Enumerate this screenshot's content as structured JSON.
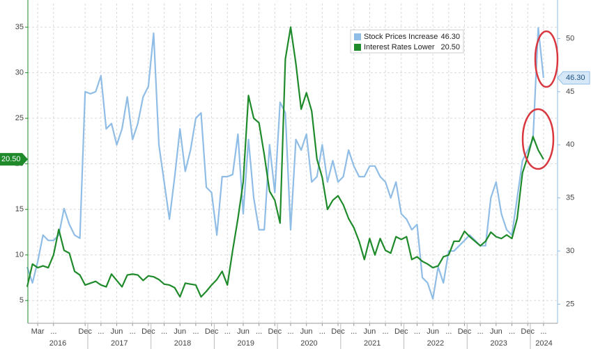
{
  "chart_data": {
    "type": "line",
    "categories": [
      null,
      null,
      "Mar",
      null,
      null,
      "...",
      null,
      null,
      null,
      null,
      null,
      "Dec",
      null,
      null,
      "...",
      null,
      null,
      "Jun",
      null,
      null,
      "...",
      null,
      null,
      "Dec",
      null,
      null,
      "...",
      null,
      null,
      "Jun",
      null,
      null,
      "...",
      null,
      null,
      "Dec",
      null,
      null,
      "...",
      null,
      null,
      "Jun",
      null,
      null,
      "...",
      null,
      null,
      "Dec",
      null,
      null,
      "...",
      null,
      null,
      "Jun",
      null,
      null,
      "...",
      null,
      null,
      "Dec",
      null,
      null,
      "...",
      null,
      null,
      "Jun",
      null,
      null,
      "...",
      null,
      null,
      "Dec",
      null,
      null,
      "...",
      null,
      null,
      "Jun",
      null,
      null,
      "...",
      null,
      null,
      "Dec",
      null,
      null,
      "...",
      null,
      null,
      "Jun",
      null,
      null,
      "...",
      null,
      null,
      "Dec",
      null,
      null,
      "..."
    ],
    "years": [
      "2016",
      "2017",
      "2018",
      "2019",
      "2020",
      "2021",
      "2022",
      "2023",
      "2024"
    ],
    "series": [
      {
        "name": "Stock Prices Increase",
        "color": "#8fbde6",
        "axis": "y2",
        "last_label": "46.30",
        "values": [
          28.5,
          27,
          29,
          31.5,
          31,
          31,
          31.5,
          34,
          32.5,
          31.5,
          31.2,
          45,
          44.8,
          45,
          46.5,
          41.5,
          42,
          40,
          41.5,
          44.5,
          40.5,
          42,
          44.5,
          45.5,
          50.5,
          40,
          36.5,
          33,
          37,
          41.5,
          37.5,
          39.5,
          42.5,
          43,
          36,
          35.5,
          31.5,
          37,
          37,
          37.2,
          41,
          33.5,
          40.5,
          35,
          32,
          32,
          40,
          35.5,
          44,
          43,
          32,
          40.5,
          39.5,
          41,
          36.5,
          37,
          40,
          36.5,
          38.5,
          36.5,
          37,
          39.5,
          38,
          37,
          37,
          38,
          38,
          37,
          36.5,
          35,
          36.5,
          33.5,
          33,
          32,
          32.5,
          27.5,
          27,
          25.5,
          28.5,
          27,
          30,
          30,
          30.5,
          31,
          31.5,
          31,
          30.5,
          30.5,
          35,
          36.5,
          33.5,
          32,
          31.5,
          35,
          38.5,
          39.5,
          40.5,
          51,
          46.3
        ]
      },
      {
        "name": "Interest Rates Lower",
        "color": "#1e8a2a",
        "axis": "y",
        "last_label": "20.50",
        "values": [
          6.5,
          9,
          8.6,
          8.8,
          8.6,
          10,
          12.8,
          10.5,
          10.2,
          8.2,
          7.8,
          6.7,
          6.9,
          7.1,
          6.7,
          6.5,
          7.9,
          7.2,
          6.5,
          7.8,
          7.9,
          7.8,
          7.2,
          7.7,
          7.6,
          7.3,
          6.8,
          6.7,
          6.4,
          5.4,
          6.9,
          6.8,
          6.7,
          5.4,
          6,
          6.7,
          7.3,
          8.2,
          6.7,
          10.5,
          14,
          18,
          27.5,
          25,
          24.5,
          21,
          17,
          16,
          13.5,
          31.5,
          35,
          31,
          26,
          27.8,
          25.8,
          20.5,
          18.5,
          15,
          16,
          16.5,
          15.5,
          14,
          13,
          11.5,
          9.5,
          11.8,
          10,
          11.8,
          10.5,
          10.2,
          12,
          11.7,
          12,
          9.5,
          9.8,
          9.3,
          9,
          8.6,
          8.8,
          9.8,
          10,
          11.5,
          11.5,
          12.6,
          12,
          11.5,
          11,
          11.5,
          12.5,
          12,
          11.8,
          12.2,
          11.8,
          14,
          19,
          20.8,
          23,
          21.5,
          20.5
        ]
      }
    ],
    "ylim": [
      2.5,
      37.6
    ],
    "yticks": [
      5,
      10,
      15,
      20,
      25,
      30,
      35
    ],
    "y2lim": [
      23.2,
      53.3
    ],
    "y2ticks": [
      25,
      30,
      35,
      40,
      45,
      50
    ],
    "grid": true
  }
}
